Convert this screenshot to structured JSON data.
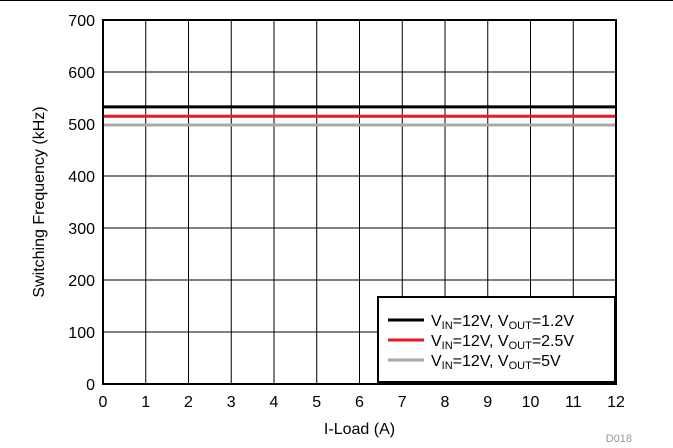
{
  "chart_data": {
    "type": "line",
    "title": "",
    "xlabel": "I-Load (A)",
    "ylabel": "Switching Frequency (kHz)",
    "xlim": [
      0,
      12
    ],
    "ylim": [
      0,
      700
    ],
    "xticks": [
      "0",
      "1",
      "2",
      "3",
      "4",
      "5",
      "6",
      "7",
      "8",
      "9",
      "10",
      "11",
      "12"
    ],
    "yticks": [
      "0",
      "100",
      "200",
      "300",
      "400",
      "500",
      "600",
      "700"
    ],
    "grid": true,
    "legend_position": "bottom-right",
    "figure_id": "D018",
    "x": [
      0,
      12
    ],
    "series": [
      {
        "name": "VIN=12V, VOUT=1.2V",
        "label_parts": [
          "V",
          "IN",
          "=12V, V",
          "OUT",
          "=1.2V"
        ],
        "values": [
          533,
          533
        ],
        "color": "#000000"
      },
      {
        "name": "VIN=12V, VOUT=2.5V",
        "label_parts": [
          "V",
          "IN",
          "=12V, V",
          "OUT",
          "=2.5V"
        ],
        "values": [
          515,
          515
        ],
        "color": "#e8191f"
      },
      {
        "name": "VIN=12V, VOUT=5V",
        "label_parts": [
          "V",
          "IN",
          "=12V, V",
          "OUT",
          "=5V"
        ],
        "values": [
          498,
          498
        ],
        "color": "#a9a9a9"
      }
    ]
  }
}
